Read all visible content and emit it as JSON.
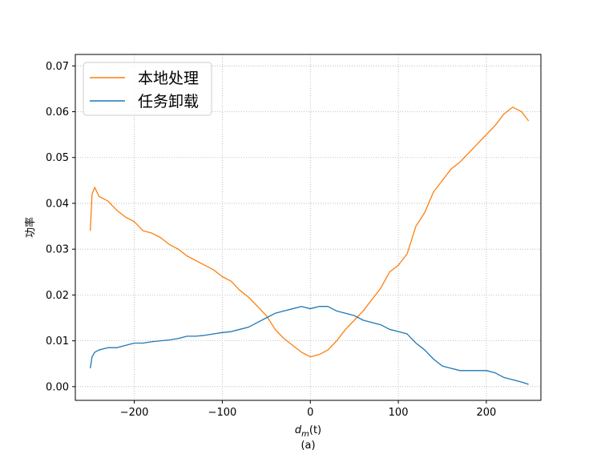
{
  "chart_data": {
    "type": "line",
    "title": "",
    "xlabel": "d_m(t)",
    "xlabel_parts": {
      "base": "d",
      "sub": "m",
      "rest": "(t)"
    },
    "ylabel": "功率",
    "caption": "(a)",
    "xlim": [
      -267,
      262
    ],
    "ylim": [
      -0.003,
      0.0725
    ],
    "xticks": [
      -200,
      -100,
      0,
      100,
      200
    ],
    "xtick_labels": [
      "−200",
      "−100",
      "0",
      "100",
      "200"
    ],
    "yticks": [
      0.0,
      0.01,
      0.02,
      0.03,
      0.04,
      0.05,
      0.06,
      0.07
    ],
    "ytick_labels": [
      "0.00",
      "0.01",
      "0.02",
      "0.03",
      "0.04",
      "0.05",
      "0.06",
      "0.07"
    ],
    "grid": true,
    "legend_position": "top-left",
    "series": [
      {
        "name": "本地处理",
        "color": "#ff7f0e",
        "x": [
          -250,
          -248,
          -245,
          -240,
          -230,
          -220,
          -210,
          -200,
          -190,
          -180,
          -170,
          -160,
          -150,
          -140,
          -130,
          -120,
          -110,
          -100,
          -90,
          -80,
          -70,
          -60,
          -50,
          -40,
          -30,
          -20,
          -10,
          0,
          10,
          20,
          30,
          40,
          50,
          60,
          70,
          80,
          90,
          100,
          110,
          120,
          130,
          140,
          150,
          160,
          170,
          180,
          190,
          200,
          210,
          220,
          230,
          240,
          248
        ],
        "y": [
          0.034,
          0.042,
          0.0435,
          0.0415,
          0.0405,
          0.0385,
          0.037,
          0.036,
          0.034,
          0.0335,
          0.0325,
          0.031,
          0.03,
          0.0285,
          0.0275,
          0.0265,
          0.0255,
          0.024,
          0.023,
          0.021,
          0.0195,
          0.0175,
          0.0155,
          0.0125,
          0.0105,
          0.009,
          0.0075,
          0.0065,
          0.007,
          0.008,
          0.01,
          0.0125,
          0.0145,
          0.0165,
          0.019,
          0.0215,
          0.025,
          0.0265,
          0.029,
          0.035,
          0.038,
          0.0425,
          0.045,
          0.0475,
          0.049,
          0.051,
          0.053,
          0.055,
          0.057,
          0.0595,
          0.061,
          0.06,
          0.058
        ]
      },
      {
        "name": "任务卸载",
        "color": "#1f77b4",
        "x": [
          -250,
          -248,
          -245,
          -240,
          -230,
          -220,
          -210,
          -200,
          -190,
          -180,
          -170,
          -160,
          -150,
          -140,
          -130,
          -120,
          -110,
          -100,
          -90,
          -80,
          -70,
          -60,
          -50,
          -40,
          -30,
          -20,
          -10,
          0,
          10,
          20,
          30,
          40,
          50,
          60,
          70,
          80,
          90,
          100,
          110,
          120,
          130,
          140,
          150,
          160,
          170,
          180,
          190,
          200,
          210,
          220,
          230,
          240,
          248
        ],
        "y": [
          0.004,
          0.0065,
          0.0075,
          0.008,
          0.0085,
          0.0085,
          0.009,
          0.0095,
          0.0095,
          0.0098,
          0.01,
          0.0102,
          0.0105,
          0.011,
          0.011,
          0.0112,
          0.0115,
          0.0118,
          0.012,
          0.0125,
          0.013,
          0.014,
          0.015,
          0.016,
          0.0165,
          0.017,
          0.0175,
          0.017,
          0.0175,
          0.0175,
          0.0165,
          0.016,
          0.0155,
          0.0145,
          0.014,
          0.0135,
          0.0125,
          0.012,
          0.0115,
          0.0095,
          0.008,
          0.006,
          0.0045,
          0.004,
          0.0035,
          0.0035,
          0.0035,
          0.0035,
          0.003,
          0.002,
          0.0015,
          0.001,
          0.0005
        ]
      }
    ]
  }
}
